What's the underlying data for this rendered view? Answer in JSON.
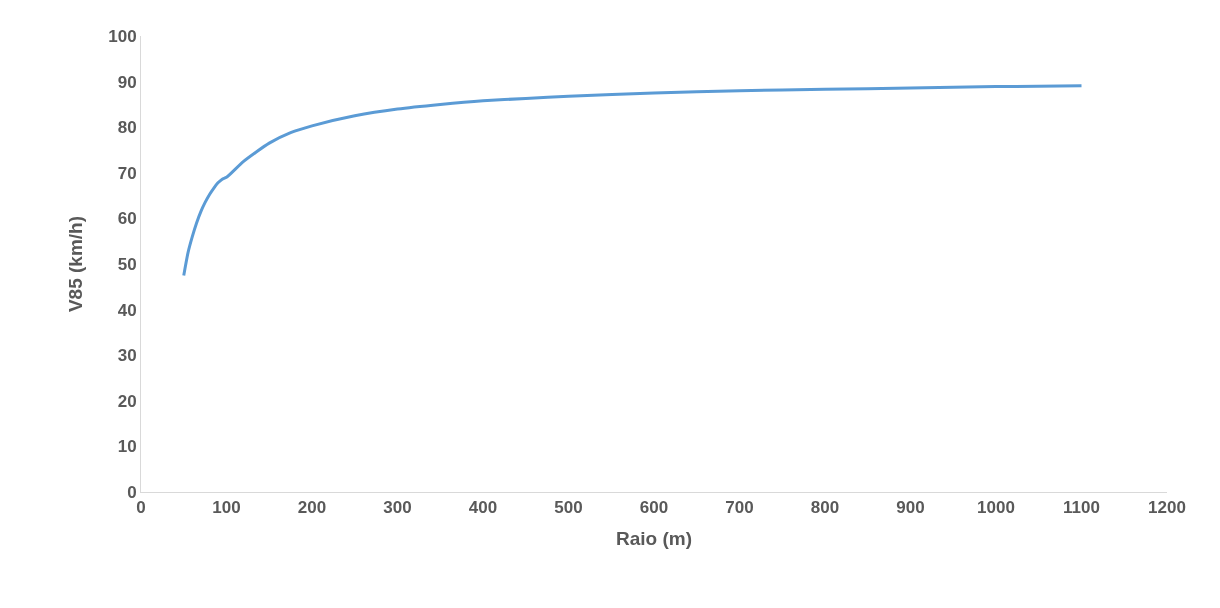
{
  "chart_data": {
    "type": "line",
    "xlabel": "Raio (m)",
    "ylabel": "V85 (km/h)",
    "series": [
      {
        "color": "#5b9bd5",
        "x": [
          50,
          55,
          60,
          65,
          70,
          75,
          80,
          85,
          90,
          95,
          100,
          120,
          150,
          175,
          200,
          250,
          300,
          350,
          400,
          450,
          500,
          600,
          700,
          800,
          900,
          1000,
          1100
        ],
        "values": [
          47.5,
          52.5,
          56,
          59,
          61.5,
          63.5,
          65.2,
          66.6,
          67.8,
          68.6,
          69,
          72.5,
          76.5,
          78.8,
          80.3,
          82.5,
          84,
          85,
          85.8,
          86.3,
          86.8,
          87.5,
          88,
          88.3,
          88.6,
          88.9,
          89.1
        ]
      }
    ],
    "xlim": [
      0,
      1200
    ],
    "xticks": [
      0,
      100,
      200,
      300,
      400,
      500,
      600,
      700,
      800,
      900,
      1000,
      1100,
      1200
    ],
    "ylim": [
      0,
      100
    ],
    "yticks": [
      0,
      10,
      20,
      30,
      40,
      50,
      60,
      70,
      80,
      90,
      100
    ],
    "grid": false,
    "marker": "none",
    "line_style": "solid"
  }
}
